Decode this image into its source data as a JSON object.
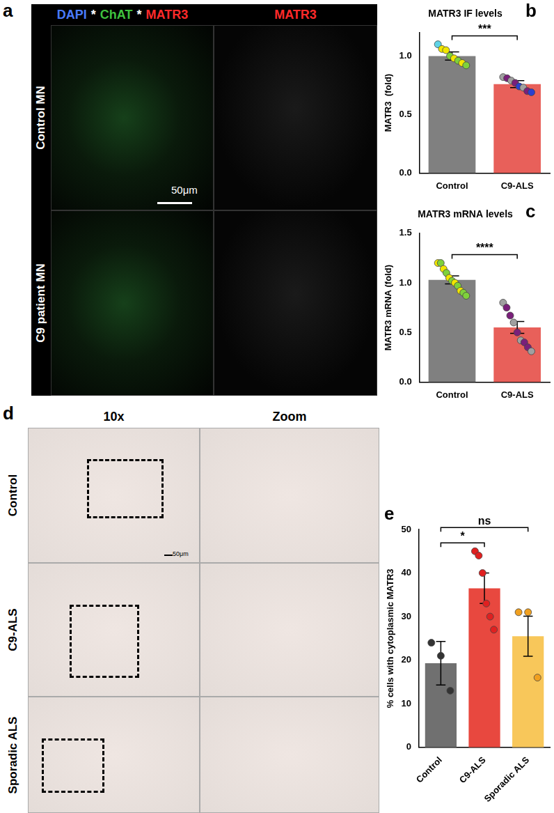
{
  "panel_a": {
    "panel": "a",
    "header": [
      {
        "text": "DAPI",
        "color": "#4a7bff"
      },
      {
        "text": "*",
        "color": "#ffffff"
      },
      {
        "text": "ChAT",
        "color": "#3fc23f"
      },
      {
        "text": "*",
        "color": "#ffffff"
      },
      {
        "text": "MATR3",
        "color": "#ff2a2a"
      }
    ],
    "header_right": {
      "text": "MATR3",
      "color": "#ff2a2a"
    },
    "rows": [
      "Control MN",
      "C9 patient MN"
    ],
    "scale_bar": "50μm"
  },
  "panel_d": {
    "panel": "d",
    "columns": [
      "10x",
      "Zoom"
    ],
    "rows": [
      "Control",
      "C9-ALS",
      "Sporadic ALS"
    ],
    "scale_bar": "50μm"
  },
  "chart_data": [
    {
      "panel": "b",
      "type": "bar",
      "title": "MATR3 IF levels",
      "y_label": "MATR3  (fold)",
      "categories": [
        "Control",
        "C9-ALS"
      ],
      "values": [
        1.0,
        0.76
      ],
      "errors": [
        0.035,
        0.03
      ],
      "colors": [
        "#808080",
        "#e8605a"
      ],
      "points": [
        [
          1.1,
          1.06,
          1.05,
          1.0,
          0.98,
          0.96,
          0.94,
          0.92
        ],
        [
          0.82,
          0.81,
          0.79,
          0.77,
          0.74,
          0.73,
          0.7,
          0.69
        ]
      ],
      "point_colors": [
        [
          "#5fd3e6",
          "#f2e600",
          "#f2e600",
          "#7fd13b",
          "#f2e600",
          "#7fd13b",
          "#f2e600",
          "#7fd13b"
        ],
        [
          "#a0a0a0",
          "#7a1f7a",
          "#a0a0a0",
          "#7a1f7a",
          "#2a3fd0",
          "#a0a0a0",
          "#7a1f7a",
          "#2a3fd0"
        ]
      ],
      "ylim": [
        0,
        1.2
      ],
      "yticks": [
        {
          "value": 0,
          "label": "0.0"
        },
        {
          "value": 0.5,
          "label": "0.5"
        },
        {
          "value": 1,
          "label": "1.0"
        }
      ],
      "grid": false,
      "annotations": [
        {
          "from": 0,
          "to": 1,
          "text": "***"
        }
      ]
    },
    {
      "panel": "c",
      "type": "bar",
      "title": "MATR3 mRNA levels",
      "y_label": "MATR3 mRNA (fold)",
      "categories": [
        "Control",
        "C9-ALS"
      ],
      "values": [
        1.03,
        0.55
      ],
      "errors": [
        0.04,
        0.06
      ],
      "colors": [
        "#808080",
        "#e8605a"
      ],
      "points": [
        [
          1.2,
          1.2,
          1.14,
          1.1,
          1.05,
          1.02,
          1.0,
          0.97,
          0.92,
          0.9,
          0.87
        ],
        [
          0.8,
          0.75,
          0.67,
          0.6,
          0.5,
          0.42,
          0.4,
          0.35,
          0.31
        ]
      ],
      "point_colors": [
        [
          "#f2e600",
          "#7fd13b",
          "#f2e600",
          "#7fd13b",
          "#f2e600",
          "#7fd13b",
          "#f2e600",
          "#7fd13b",
          "#f2e600",
          "#7fd13b",
          "#7fd13b"
        ],
        [
          "#a0a0a0",
          "#7a1f7a",
          "#7a1f7a",
          "#a0a0a0",
          "#7a1f7a",
          "#a0a0a0",
          "#7a1f7a",
          "#7a1f7a",
          "#a0a0a0"
        ]
      ],
      "ylim": [
        0,
        1.5
      ],
      "yticks": [
        {
          "value": 0,
          "label": "0.0"
        },
        {
          "value": 0.5,
          "label": "0.5"
        },
        {
          "value": 1,
          "label": "1.0"
        },
        {
          "value": 1.5,
          "label": "1.5"
        }
      ],
      "grid": false,
      "annotations": [
        {
          "from": 0,
          "to": 1,
          "text": "****"
        }
      ]
    },
    {
      "panel": "e",
      "type": "bar",
      "y_label": "% cells with cytoplasmic MATR3",
      "categories": [
        "Control",
        "C9-ALS",
        "Sporadic ALS"
      ],
      "values": [
        19.3,
        36.5,
        25.5
      ],
      "errors": [
        5.0,
        3.5,
        4.6
      ],
      "colors": [
        "#707070",
        "#e8483f",
        "#f8c75a"
      ],
      "points": [
        [
          24,
          21,
          13
        ],
        [
          45,
          44,
          40,
          33,
          30,
          27
        ],
        [
          31,
          31,
          16
        ]
      ],
      "point_colors": [
        [
          "#333333",
          "#333333",
          "#333333"
        ],
        [
          "#e02020",
          "#e02020",
          "#e02020",
          "#e02020",
          "#e02020",
          "#e02020"
        ],
        [
          "#f0a020",
          "#f0a020",
          "#f0a020"
        ]
      ],
      "ylim": [
        0,
        50
      ],
      "yticks": [
        0,
        10,
        20,
        30,
        40,
        50
      ],
      "grid": false,
      "annotations": [
        {
          "from": 0,
          "to": 1,
          "text": "*"
        },
        {
          "from": 0,
          "to": 2,
          "text": "ns"
        }
      ]
    }
  ]
}
